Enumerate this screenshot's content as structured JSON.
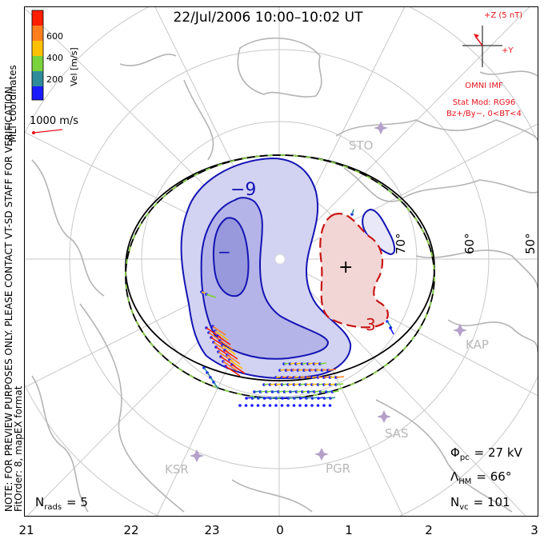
{
  "title": "22/Jul/2006 10:00–10:02 UT",
  "coordinates_note": "MLT coordinates",
  "preview_note": "NOTE: FOR PREVIEW PURPOSES ONLY. PLEASE CONTACT VT-SD STAFF FOR VERIFICATION.",
  "fit_order_note": "FitOrder: 8, mapEX format",
  "velocity_scale": {
    "label": "Vel [m/s]",
    "ticks": [
      "600",
      "400",
      "200"
    ],
    "colors": [
      "#ff1e00",
      "#ff7f1e",
      "#ffc000",
      "#7ad33a",
      "#2e8b9a",
      "#1a1aff"
    ]
  },
  "velocity_reference": "1000 m/s",
  "imf": {
    "z_label": "+Z (5 nT)",
    "y_label": "+Y",
    "source": "OMNI IMF",
    "stat_mod": "Stat Mod: RG96",
    "condition": "Bz+/By−, 0<BT<4"
  },
  "latitude_labels": [
    "70°",
    "60°",
    "50°"
  ],
  "mlt_labels": [
    "21",
    "22",
    "23",
    "0",
    "1",
    "2",
    "3"
  ],
  "contour_labels": [
    "−9",
    "−",
    "+",
    "3"
  ],
  "stations": [
    "STO",
    "KAP",
    "SAS",
    "PGR",
    "KSR"
  ],
  "stats": {
    "phi_pc_label": "Φ",
    "phi_pc_sub": "pc",
    "phi_pc_value": "= 27 kV",
    "lambda_hm_label": "Λ",
    "lambda_hm_sub": "HM",
    "lambda_hm_value": "= 66°",
    "n_vc_label": "N",
    "n_vc_sub": "vc",
    "n_vc_value": "= 101",
    "n_rads_label": "N",
    "n_rads_sub": "rads",
    "n_rads_value": "= 5"
  },
  "colors": {
    "negative_cell": "#1414b4",
    "positive_cell": "#c81414",
    "coastline": "#b4b4b4",
    "grid": "#c8c8c8",
    "station": "#b4a0c8",
    "hmb_dash": "#8ad04a"
  }
}
